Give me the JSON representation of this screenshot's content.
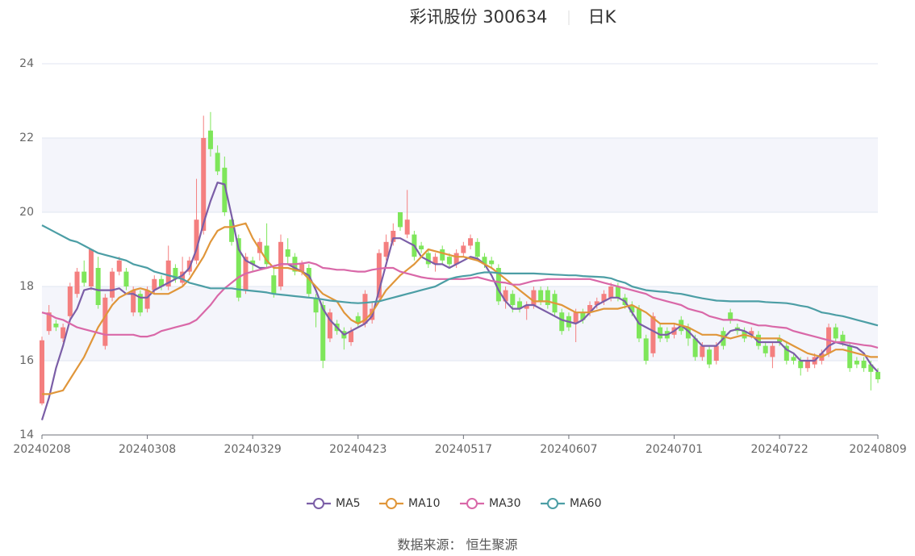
{
  "chart_data": {
    "type": "candlestick",
    "title": "彩讯股份 300634",
    "subtitle": "日K",
    "source": "数据来源： 恒生聚源",
    "categories": [
      "20240208",
      null,
      null,
      null,
      null,
      null,
      null,
      null,
      null,
      null,
      null,
      null,
      null,
      null,
      null,
      "20240308",
      null,
      null,
      null,
      null,
      null,
      null,
      null,
      null,
      null,
      null,
      null,
      null,
      null,
      null,
      "20240329",
      null,
      null,
      null,
      null,
      null,
      null,
      null,
      null,
      null,
      null,
      null,
      null,
      null,
      null,
      "20240423",
      null,
      null,
      null,
      null,
      null,
      null,
      null,
      null,
      null,
      null,
      null,
      null,
      null,
      null,
      "20240517",
      null,
      null,
      null,
      null,
      null,
      null,
      null,
      null,
      null,
      null,
      null,
      null,
      null,
      null,
      "20240607",
      null,
      null,
      null,
      null,
      null,
      null,
      null,
      null,
      null,
      null,
      null,
      null,
      null,
      null,
      "20240701",
      null,
      null,
      null,
      null,
      null,
      null,
      null,
      null,
      null,
      null,
      null,
      null,
      null,
      null,
      "20240722",
      null,
      null,
      null,
      null,
      null,
      null,
      null,
      null,
      null,
      null,
      null,
      null,
      null,
      "20240809"
    ],
    "open": [
      14.85,
      16.8,
      17.0,
      16.6,
      17.2,
      17.8,
      18.4,
      18.0,
      18.5,
      16.4,
      17.7,
      18.4,
      18.4,
      17.3,
      17.8,
      17.4,
      17.9,
      18.2,
      18.0,
      18.5,
      18.1,
      18.4,
      18.7,
      19.5,
      22.2,
      21.6,
      21.2,
      19.8,
      19.3,
      17.9,
      18.7,
      18.9,
      19.1,
      18.3,
      18.0,
      19.0,
      18.8,
      18.4,
      18.5,
      17.7,
      17.5,
      16.6,
      17.0,
      16.8,
      16.5,
      17.2,
      17.0,
      17.1,
      17.7,
      18.8,
      19.2,
      20.0,
      19.4,
      19.4,
      19.1,
      18.9,
      18.6,
      19.0,
      18.8,
      18.6,
      18.9,
      19.1,
      19.2,
      18.8,
      18.7,
      18.5,
      17.6,
      17.8,
      17.6,
      17.4,
      17.5,
      17.9,
      17.9,
      17.8,
      17.3,
      17.2,
      17.0,
      17.3,
      17.3,
      17.5,
      17.6,
      17.7,
      18.0,
      17.7,
      17.5,
      17.4,
      16.6,
      16.2,
      16.9,
      16.8,
      16.7,
      17.1,
      16.9,
      16.6,
      16.1,
      16.3,
      16.0,
      16.8,
      17.3,
      16.9,
      16.8,
      16.7,
      16.7,
      16.4,
      16.1,
      16.6,
      16.4,
      16.1,
      16.0,
      15.8,
      15.9,
      16.0,
      16.2,
      16.9,
      16.7,
      16.4,
      16.0,
      16.0,
      15.9,
      15.7
    ],
    "high": [
      16.65,
      17.5,
      17.1,
      17.0,
      18.1,
      18.5,
      18.7,
      19.0,
      18.8,
      17.8,
      18.5,
      18.8,
      18.5,
      18.0,
      17.9,
      18.0,
      18.3,
      18.3,
      19.1,
      18.6,
      18.8,
      18.8,
      20.9,
      22.6,
      22.7,
      21.8,
      21.5,
      19.9,
      19.4,
      18.9,
      18.8,
      19.3,
      19.7,
      18.5,
      19.4,
      19.3,
      18.9,
      18.7,
      18.6,
      17.8,
      17.6,
      17.4,
      17.1,
      16.9,
      16.9,
      17.3,
      17.9,
      17.6,
      19.0,
      19.4,
      19.7,
      20.0,
      20.6,
      19.5,
      19.2,
      19.0,
      18.9,
      19.1,
      18.9,
      19.0,
      19.2,
      19.4,
      19.3,
      18.9,
      18.8,
      18.6,
      18.0,
      17.9,
      17.7,
      17.6,
      18.0,
      18.0,
      18.0,
      17.9,
      17.4,
      17.3,
      17.4,
      17.4,
      17.6,
      17.7,
      17.9,
      18.1,
      18.1,
      17.8,
      17.6,
      17.5,
      16.7,
      17.3,
      17.0,
      16.9,
      17.0,
      17.2,
      17.0,
      16.7,
      16.5,
      16.4,
      16.5,
      16.9,
      17.4,
      17.0,
      16.9,
      16.9,
      16.8,
      16.5,
      16.5,
      16.7,
      16.5,
      16.2,
      16.1,
      16.1,
      16.2,
      16.3,
      17.0,
      17.0,
      16.8,
      16.5,
      16.1,
      16.1,
      16.0,
      15.8
    ],
    "low": [
      14.8,
      16.7,
      16.8,
      16.5,
      17.1,
      17.7,
      18.0,
      17.9,
      17.4,
      16.3,
      17.6,
      18.3,
      17.9,
      17.2,
      17.2,
      17.3,
      17.8,
      17.9,
      17.9,
      18.1,
      18.0,
      18.3,
      18.6,
      19.4,
      21.5,
      21.0,
      19.9,
      19.1,
      17.6,
      17.8,
      18.4,
      18.7,
      18.5,
      17.7,
      17.9,
      18.6,
      18.3,
      18.3,
      17.7,
      16.9,
      15.8,
      16.5,
      16.7,
      16.3,
      16.4,
      16.9,
      16.9,
      17.0,
      17.6,
      18.7,
      19.1,
      19.5,
      19.3,
      18.7,
      18.9,
      18.5,
      18.4,
      18.6,
      18.5,
      18.5,
      18.8,
      19.0,
      18.7,
      18.5,
      18.5,
      17.5,
      17.4,
      17.3,
      17.3,
      17.1,
      17.4,
      17.5,
      17.4,
      17.2,
      16.7,
      16.8,
      16.5,
      17.0,
      17.2,
      17.4,
      17.5,
      17.6,
      17.6,
      17.4,
      17.2,
      16.5,
      15.9,
      16.1,
      16.5,
      16.5,
      16.6,
      16.7,
      16.4,
      16.0,
      16.0,
      15.8,
      15.9,
      16.3,
      17.0,
      16.7,
      16.5,
      16.6,
      16.3,
      16.1,
      15.8,
      16.4,
      15.9,
      15.9,
      15.6,
      15.7,
      15.8,
      15.9,
      16.1,
      16.5,
      16.4,
      15.7,
      15.8,
      15.7,
      15.2,
      15.4
    ],
    "close": [
      16.55,
      17.3,
      16.9,
      16.9,
      18.0,
      18.4,
      18.1,
      19.0,
      17.5,
      17.7,
      18.4,
      18.7,
      18.0,
      17.9,
      17.3,
      17.9,
      18.2,
      18.0,
      18.7,
      18.2,
      18.4,
      18.7,
      19.8,
      22.0,
      21.7,
      21.1,
      20.0,
      19.2,
      17.7,
      18.8,
      18.6,
      19.2,
      18.6,
      17.8,
      19.2,
      18.8,
      18.4,
      18.6,
      17.8,
      17.3,
      16.0,
      17.3,
      16.8,
      16.6,
      16.8,
      17.0,
      17.8,
      17.4,
      18.9,
      19.2,
      19.5,
      19.6,
      19.8,
      18.8,
      19.0,
      18.6,
      18.8,
      18.7,
      18.6,
      18.9,
      19.1,
      19.3,
      18.8,
      18.6,
      18.6,
      17.6,
      17.9,
      17.5,
      17.4,
      17.5,
      17.9,
      17.6,
      17.5,
      17.3,
      16.8,
      16.9,
      17.3,
      17.1,
      17.5,
      17.6,
      17.8,
      18.0,
      17.7,
      17.5,
      17.3,
      16.6,
      16.0,
      17.2,
      16.6,
      16.6,
      16.9,
      16.8,
      16.6,
      16.1,
      16.4,
      15.9,
      16.4,
      16.4,
      17.1,
      16.8,
      16.6,
      16.8,
      16.4,
      16.2,
      16.4,
      16.5,
      16.0,
      16.0,
      15.8,
      16.0,
      16.1,
      16.2,
      16.9,
      16.6,
      16.5,
      15.8,
      15.9,
      15.8,
      15.7,
      15.5
    ],
    "up_color": "#f47f7f",
    "down_color": "#7ee65a",
    "series": [
      {
        "name": "MA5",
        "color": "#7b5ea7",
        "values": [
          14.4,
          15.0,
          15.8,
          16.4,
          17.1,
          17.4,
          17.9,
          17.95,
          17.9,
          17.9,
          17.9,
          17.95,
          17.8,
          17.8,
          17.7,
          17.7,
          17.9,
          18.0,
          18.1,
          18.2,
          18.3,
          18.5,
          19.0,
          19.7,
          20.3,
          20.8,
          20.75,
          19.9,
          19.0,
          18.7,
          18.6,
          18.5,
          18.5,
          18.55,
          18.6,
          18.6,
          18.5,
          18.4,
          18.3,
          17.9,
          17.4,
          17.1,
          16.9,
          16.7,
          16.8,
          16.9,
          17.0,
          17.2,
          17.9,
          18.6,
          19.3,
          19.3,
          19.2,
          19.1,
          18.8,
          18.7,
          18.6,
          18.6,
          18.5,
          18.6,
          18.7,
          18.8,
          18.75,
          18.6,
          18.3,
          17.9,
          17.6,
          17.4,
          17.4,
          17.5,
          17.5,
          17.4,
          17.3,
          17.2,
          17.1,
          17.05,
          17.0,
          17.1,
          17.3,
          17.5,
          17.6,
          17.7,
          17.7,
          17.6,
          17.3,
          17.0,
          16.9,
          16.8,
          16.7,
          16.7,
          16.8,
          16.95,
          16.8,
          16.6,
          16.4,
          16.4,
          16.4,
          16.6,
          16.8,
          16.85,
          16.8,
          16.7,
          16.5,
          16.5,
          16.5,
          16.5,
          16.3,
          16.2,
          16.0,
          16.0,
          16.0,
          16.2,
          16.4,
          16.5,
          16.45,
          16.4,
          16.35,
          16.2,
          15.9,
          15.7
        ]
      },
      {
        "name": "MA10",
        "color": "#e0963a",
        "values": [
          15.1,
          15.1,
          15.15,
          15.2,
          15.5,
          15.8,
          16.1,
          16.5,
          16.9,
          17.2,
          17.5,
          17.7,
          17.8,
          17.9,
          17.95,
          17.9,
          17.8,
          17.8,
          17.8,
          17.9,
          18.0,
          18.2,
          18.5,
          18.8,
          19.2,
          19.5,
          19.6,
          19.6,
          19.65,
          19.7,
          19.3,
          19.0,
          18.7,
          18.5,
          18.5,
          18.5,
          18.45,
          18.4,
          18.2,
          18.0,
          17.8,
          17.7,
          17.6,
          17.3,
          17.1,
          17.0,
          17.1,
          17.3,
          17.6,
          17.9,
          18.1,
          18.3,
          18.45,
          18.6,
          18.8,
          19.0,
          18.95,
          18.9,
          18.85,
          18.8,
          18.8,
          18.75,
          18.7,
          18.6,
          18.5,
          18.35,
          18.2,
          18.05,
          17.9,
          17.75,
          17.6,
          17.6,
          17.6,
          17.55,
          17.5,
          17.4,
          17.3,
          17.3,
          17.3,
          17.35,
          17.4,
          17.4,
          17.4,
          17.45,
          17.5,
          17.4,
          17.3,
          17.15,
          17.0,
          17.0,
          17.0,
          16.95,
          16.9,
          16.8,
          16.7,
          16.7,
          16.7,
          16.65,
          16.6,
          16.65,
          16.7,
          16.65,
          16.6,
          16.6,
          16.6,
          16.6,
          16.5,
          16.4,
          16.3,
          16.2,
          16.15,
          16.1,
          16.2,
          16.3,
          16.3,
          16.25,
          16.2,
          16.15,
          16.1,
          16.1
        ]
      },
      {
        "name": "MA30",
        "color": "#d968a8",
        "values": [
          17.3,
          17.25,
          17.15,
          17.1,
          17.0,
          16.9,
          16.85,
          16.8,
          16.75,
          16.7,
          16.7,
          16.7,
          16.7,
          16.7,
          16.65,
          16.65,
          16.7,
          16.8,
          16.85,
          16.9,
          16.95,
          17.0,
          17.1,
          17.3,
          17.5,
          17.75,
          17.95,
          18.1,
          18.25,
          18.35,
          18.4,
          18.45,
          18.5,
          18.55,
          18.6,
          18.6,
          18.6,
          18.62,
          18.65,
          18.6,
          18.5,
          18.48,
          18.45,
          18.45,
          18.42,
          18.4,
          18.4,
          18.45,
          18.48,
          18.5,
          18.5,
          18.4,
          18.35,
          18.3,
          18.25,
          18.22,
          18.2,
          18.2,
          18.2,
          18.2,
          18.2,
          18.22,
          18.25,
          18.2,
          18.15,
          18.12,
          18.1,
          18.05,
          18.05,
          18.1,
          18.15,
          18.17,
          18.2,
          18.2,
          18.2,
          18.2,
          18.2,
          18.2,
          18.2,
          18.15,
          18.1,
          18.05,
          18.0,
          17.95,
          17.9,
          17.85,
          17.8,
          17.7,
          17.65,
          17.6,
          17.55,
          17.5,
          17.4,
          17.35,
          17.3,
          17.2,
          17.15,
          17.1,
          17.1,
          17.1,
          17.05,
          17.0,
          16.95,
          16.95,
          16.92,
          16.9,
          16.88,
          16.8,
          16.75,
          16.7,
          16.65,
          16.6,
          16.55,
          16.5,
          16.5,
          16.48,
          16.45,
          16.42,
          16.4,
          16.35
        ]
      },
      {
        "name": "MA60",
        "color": "#4c9ea5",
        "values": [
          19.65,
          19.55,
          19.45,
          19.35,
          19.25,
          19.2,
          19.1,
          19.0,
          18.9,
          18.85,
          18.8,
          18.75,
          18.7,
          18.6,
          18.55,
          18.5,
          18.4,
          18.35,
          18.3,
          18.25,
          18.2,
          18.1,
          18.05,
          18.0,
          17.95,
          17.95,
          17.95,
          17.95,
          17.92,
          17.9,
          17.88,
          17.86,
          17.84,
          17.8,
          17.78,
          17.76,
          17.74,
          17.72,
          17.7,
          17.68,
          17.65,
          17.62,
          17.6,
          17.58,
          17.56,
          17.55,
          17.56,
          17.58,
          17.6,
          17.65,
          17.7,
          17.75,
          17.8,
          17.85,
          17.9,
          17.95,
          18.0,
          18.1,
          18.2,
          18.25,
          18.28,
          18.3,
          18.35,
          18.38,
          18.38,
          18.36,
          18.35,
          18.35,
          18.35,
          18.35,
          18.35,
          18.34,
          18.33,
          18.32,
          18.31,
          18.3,
          18.3,
          18.28,
          18.27,
          18.26,
          18.25,
          18.22,
          18.15,
          18.1,
          18.0,
          17.95,
          17.9,
          17.88,
          17.86,
          17.85,
          17.82,
          17.8,
          17.76,
          17.72,
          17.68,
          17.65,
          17.62,
          17.61,
          17.6,
          17.6,
          17.6,
          17.6,
          17.6,
          17.58,
          17.57,
          17.56,
          17.55,
          17.52,
          17.48,
          17.45,
          17.38,
          17.3,
          17.27,
          17.23,
          17.2,
          17.15,
          17.1,
          17.05,
          17.0,
          16.95
        ]
      }
    ],
    "ylim": [
      14,
      24
    ],
    "yticks": [
      14,
      16,
      18,
      20,
      22,
      24
    ],
    "grid": true,
    "legend": "bottom"
  }
}
